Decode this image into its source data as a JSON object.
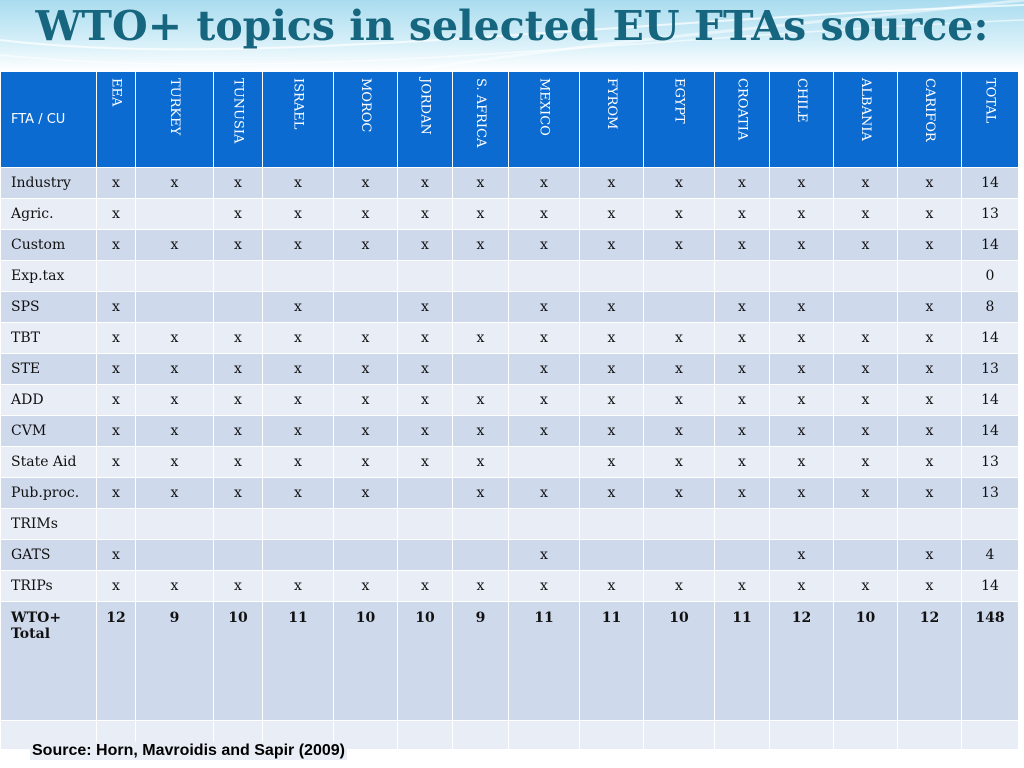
{
  "title": "WTO+ topics in selected EU FTAs source:",
  "table": {
    "corner_label": "FTA / CU",
    "columns": [
      "EEA",
      "TURKEY",
      "TUNUSIA",
      "ISRAEL",
      "MOROC",
      "JORDAN",
      "S. AFRICA",
      "MEXICO",
      "FYROM",
      "EGYPT",
      "CROATIA",
      "CHILE",
      "ALBANIA",
      "CARIFOR",
      "TOTAL"
    ],
    "rows": [
      {
        "label": "Industry",
        "cells": [
          "x",
          "x",
          "x",
          "x",
          "x",
          "x",
          "x",
          "x",
          "x",
          "x",
          "x",
          "x",
          "x",
          "x",
          "14"
        ]
      },
      {
        "label": "Agric.",
        "cells": [
          "x",
          "",
          "x",
          "x",
          "x",
          "x",
          "x",
          "x",
          "x",
          "x",
          "x",
          "x",
          "x",
          "x",
          "13"
        ]
      },
      {
        "label": "Custom",
        "cells": [
          "x",
          "x",
          "x",
          "x",
          "x",
          "x",
          "x",
          "x",
          "x",
          "x",
          "x",
          "x",
          "x",
          "x",
          "14"
        ]
      },
      {
        "label": "Exp.tax",
        "cells": [
          "",
          "",
          "",
          "",
          "",
          "",
          "",
          "",
          "",
          "",
          "",
          "",
          "",
          "",
          "0"
        ]
      },
      {
        "label": "SPS",
        "cells": [
          "x",
          "",
          "",
          "x",
          "",
          "x",
          "",
          "x",
          "x",
          "",
          "x",
          "x",
          "",
          "x",
          "8"
        ]
      },
      {
        "label": "TBT",
        "cells": [
          "x",
          "x",
          "x",
          "x",
          "x",
          "x",
          "x",
          "x",
          "x",
          "x",
          "x",
          "x",
          "x",
          "x",
          "14"
        ]
      },
      {
        "label": "STE",
        "cells": [
          "x",
          "x",
          "x",
          "x",
          "x",
          "x",
          "",
          "x",
          "x",
          "x",
          "x",
          "x",
          "x",
          "x",
          "13"
        ]
      },
      {
        "label": "ADD",
        "cells": [
          "x",
          "x",
          "x",
          "x",
          "x",
          "x",
          "x",
          "x",
          "x",
          "x",
          "x",
          "x",
          "x",
          "x",
          "14"
        ]
      },
      {
        "label": "CVM",
        "cells": [
          "x",
          "x",
          "x",
          "x",
          "x",
          "x",
          "x",
          "x",
          "x",
          "x",
          "x",
          "x",
          "x",
          "x",
          "14"
        ]
      },
      {
        "label": "State Aid",
        "cells": [
          "x",
          "x",
          "x",
          "x",
          "x",
          "x",
          "x",
          "",
          "x",
          "x",
          "x",
          "x",
          "x",
          "x",
          "13"
        ]
      },
      {
        "label": "Pub.proc.",
        "cells": [
          "x",
          "x",
          "x",
          "x",
          "x",
          "",
          "x",
          "x",
          "x",
          "x",
          "x",
          "x",
          "x",
          "x",
          "13"
        ]
      },
      {
        "label": "TRIMs",
        "cells": [
          "",
          "",
          "",
          "",
          "",
          "",
          "",
          "",
          "",
          "",
          "",
          "",
          "",
          "",
          ""
        ]
      },
      {
        "label": "GATS",
        "cells": [
          "x",
          "",
          "",
          "",
          "",
          "",
          "",
          "x",
          "",
          "",
          "",
          "x",
          "",
          "x",
          "4"
        ]
      },
      {
        "label": "TRIPs",
        "cells": [
          "x",
          "x",
          "x",
          "x",
          "x",
          "x",
          "x",
          "x",
          "x",
          "x",
          "x",
          "x",
          "x",
          "x",
          "14"
        ]
      }
    ],
    "total_row": {
      "label": "WTO+ Total",
      "cells": [
        "12",
        "9",
        "10",
        "11",
        "10",
        "10",
        "9",
        "11",
        "11",
        "10",
        "11",
        "12",
        "10",
        "12",
        "148"
      ]
    }
  },
  "source": "Source: Horn, Mavroidis and Sapir (2009)",
  "colors": {
    "header": "#0b6bd0",
    "title": "#17667f",
    "row_dark": "#cfd9ec",
    "row_light": "#e8edf6"
  }
}
